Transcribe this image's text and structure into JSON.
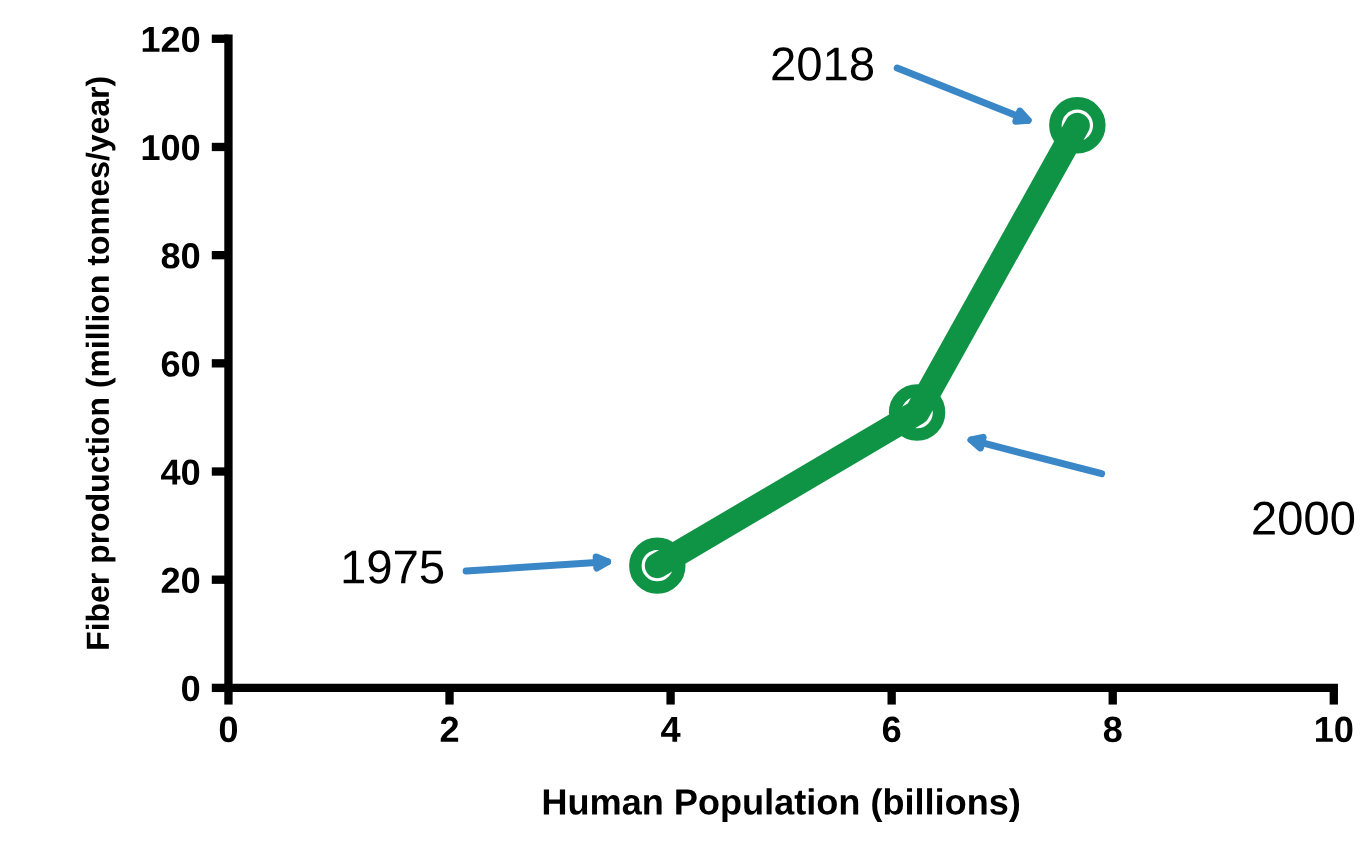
{
  "chart_data": {
    "type": "line",
    "xlabel": "Human Population (billions)",
    "ylabel": "Fiber production (million tonnes/year)",
    "x": [
      3.88,
      6.23,
      7.68
    ],
    "series": [
      {
        "color": "#0e9444",
        "values": [
          22.6,
          50.9,
          104
        ]
      }
    ],
    "marker": "circle",
    "line_style": "solid",
    "grid": false,
    "xlim": [
      0,
      10
    ],
    "xticks": [
      0,
      2,
      4,
      6,
      8,
      10
    ],
    "ylim": [
      0,
      120
    ],
    "yticks": [
      0,
      20,
      40,
      60,
      80,
      100,
      120
    ],
    "annotations": [
      "1975",
      "2000",
      "2018"
    ]
  }
}
